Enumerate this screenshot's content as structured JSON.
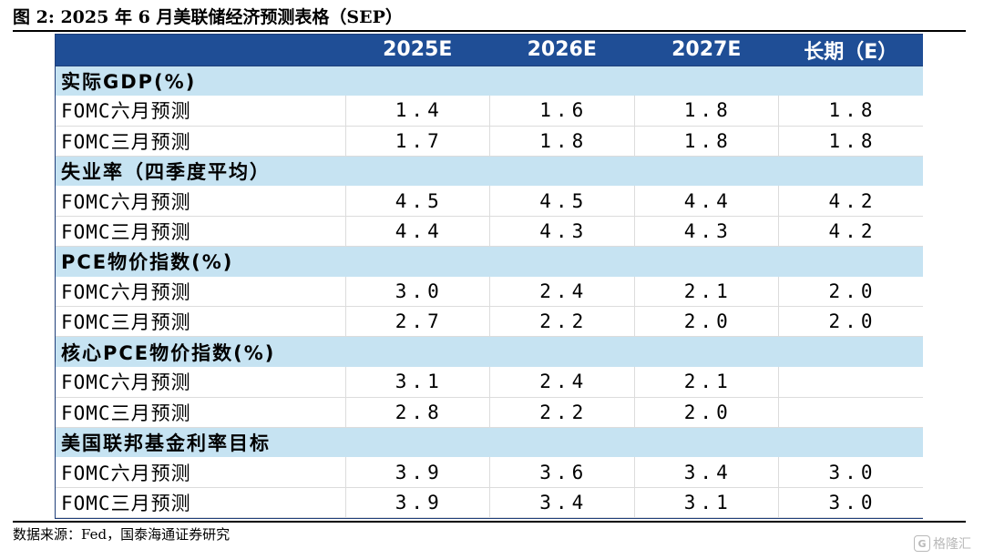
{
  "figure": {
    "title": "图 2:  2025 年 6 月美联储经济预测表格（SEP）",
    "source": "数据来源：Fed，国泰海通证券研究"
  },
  "table": {
    "header": [
      "",
      "2025E",
      "2026E",
      "2027E",
      "长期（E）"
    ],
    "sections": [
      {
        "label": "实际GDP(%)",
        "rows": [
          {
            "label": "FOMC六月预测",
            "values": [
              "1.4",
              "1.6",
              "1.8",
              "1.8"
            ]
          },
          {
            "label": "FOMC三月预测",
            "values": [
              "1.7",
              "1.8",
              "1.8",
              "1.8"
            ]
          }
        ]
      },
      {
        "label": "失业率（四季度平均）",
        "rows": [
          {
            "label": "FOMC六月预测",
            "values": [
              "4.5",
              "4.5",
              "4.4",
              "4.2"
            ]
          },
          {
            "label": "FOMC三月预测",
            "values": [
              "4.4",
              "4.3",
              "4.3",
              "4.2"
            ]
          }
        ]
      },
      {
        "label": "PCE物价指数(%)",
        "rows": [
          {
            "label": "FOMC六月预测",
            "values": [
              "3.0",
              "2.4",
              "2.1",
              "2.0"
            ]
          },
          {
            "label": "FOMC三月预测",
            "values": [
              "2.7",
              "2.2",
              "2.0",
              "2.0"
            ]
          }
        ]
      },
      {
        "label": "核心PCE物价指数(%)",
        "rows": [
          {
            "label": "FOMC六月预测",
            "values": [
              "3.1",
              "2.4",
              "2.1",
              ""
            ]
          },
          {
            "label": "FOMC三月预测",
            "values": [
              "2.8",
              "2.2",
              "2.0",
              ""
            ]
          }
        ]
      },
      {
        "label": "美国联邦基金利率目标",
        "rows": [
          {
            "label": "FOMC六月预测",
            "values": [
              "3.9",
              "3.6",
              "3.4",
              "3.0"
            ]
          },
          {
            "label": "FOMC三月预测",
            "values": [
              "3.9",
              "3.4",
              "3.1",
              "3.0"
            ]
          }
        ]
      }
    ]
  },
  "watermark": {
    "text": "格隆汇",
    "icon": "gelonghui-logo-icon"
  },
  "colors": {
    "header_bg": "#1f4e96",
    "section_bg": "#c6e3f2",
    "header_text": "#ffffff"
  }
}
